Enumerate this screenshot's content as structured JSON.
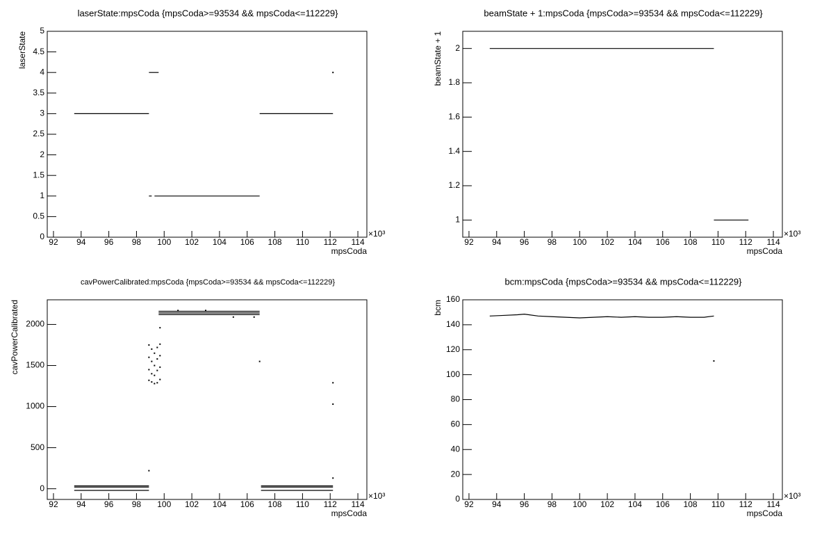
{
  "chart_data": [
    {
      "type": "scatter",
      "title": "laserState:mpsCoda {mpsCoda>=93534 && mpsCoda<=112229}",
      "x_label": "mpsCoda",
      "y_label": "laserState",
      "x_exponent_label": "×10³",
      "color": "#000000",
      "x": [
        93.5,
        98.9,
        null,
        98.9,
        99.6,
        null,
        98.9,
        99.1,
        null,
        99.3,
        106.9,
        null,
        106.9,
        112.2,
        null,
        112.2
      ],
      "values": [
        3,
        3,
        null,
        4,
        4,
        null,
        1,
        1,
        null,
        1,
        1,
        null,
        3,
        3,
        null,
        4
      ],
      "xlim": [
        91.55,
        114.65
      ],
      "xticks": [
        92,
        94,
        96,
        98,
        100,
        102,
        104,
        106,
        108,
        110,
        112,
        114
      ],
      "ylim": [
        0,
        5
      ],
      "yticks": [
        0,
        0.5,
        1,
        1.5,
        2,
        2.5,
        3,
        3.5,
        4,
        4.5,
        5
      ]
    },
    {
      "type": "scatter",
      "title": "beamState + 1:mpsCoda {mpsCoda>=93534 && mpsCoda<=112229}",
      "x_label": "mpsCoda",
      "y_label": "beamState + 1",
      "x_exponent_label": "×10³",
      "color": "#000000",
      "x": [
        93.5,
        109.7,
        null,
        109.7,
        112.2
      ],
      "values": [
        2,
        2,
        null,
        1,
        1
      ],
      "xlim": [
        91.55,
        114.65
      ],
      "xticks": [
        92,
        94,
        96,
        98,
        100,
        102,
        104,
        106,
        108,
        110,
        112,
        114
      ],
      "ylim": [
        0.9,
        2.1
      ],
      "yticks": [
        1,
        1.2,
        1.4,
        1.6,
        1.8,
        2
      ]
    },
    {
      "type": "scatter",
      "title": "cavPowerCalibrated:mpsCoda {mpsCoda>=93534 && mpsCoda<=112229}",
      "x_label": "mpsCoda",
      "y_label": "cavPowerCalibrated",
      "x_exponent_label": "×10³",
      "color": "#000000",
      "x": [
        93.5,
        98.9,
        null,
        93.5,
        98.9,
        null,
        93.5,
        98.9,
        null,
        99.6,
        106.9,
        null,
        99.6,
        106.9,
        null,
        99.6,
        106.9,
        null,
        107,
        112.2,
        null,
        107,
        112.2,
        null,
        107,
        112.2,
        null,
        98.9,
        null,
        98.9,
        null,
        98.9,
        null,
        98.9,
        null,
        99.1,
        null,
        99.1,
        null,
        99.1,
        null,
        99.1,
        null,
        99.3,
        null,
        99.3,
        null,
        99.3,
        null,
        99.3,
        null,
        99.5,
        null,
        99.5,
        null,
        99.5,
        null,
        99.5,
        null,
        99.7,
        null,
        99.7,
        null,
        99.7,
        null,
        99.7,
        null,
        98.9,
        null,
        99.7,
        null,
        106.9,
        null,
        112.2,
        null,
        112.2,
        null,
        112.2,
        null,
        105,
        null,
        106.5,
        null,
        101,
        null,
        103
      ],
      "values": [
        35,
        35,
        null,
        20,
        20,
        null,
        -20,
        -20,
        null,
        2160,
        2160,
        null,
        2140,
        2140,
        null,
        2120,
        2120,
        null,
        35,
        35,
        null,
        20,
        20,
        null,
        -20,
        -20,
        null,
        1750,
        null,
        1600,
        null,
        1450,
        null,
        1320,
        null,
        1700,
        null,
        1550,
        null,
        1400,
        null,
        1300,
        null,
        1650,
        null,
        1500,
        null,
        1380,
        null,
        1280,
        null,
        1720,
        null,
        1580,
        null,
        1440,
        null,
        1290,
        null,
        1760,
        null,
        1620,
        null,
        1480,
        null,
        1330,
        null,
        220,
        null,
        1960,
        null,
        1550,
        null,
        1290,
        null,
        1030,
        null,
        130,
        null,
        2090,
        null,
        2090,
        null,
        2170,
        null,
        2170
      ],
      "xlim": [
        91.55,
        114.65
      ],
      "xticks": [
        92,
        94,
        96,
        98,
        100,
        102,
        104,
        106,
        108,
        110,
        112,
        114
      ],
      "ylim": [
        -130,
        2300
      ],
      "yticks": [
        0,
        500,
        1000,
        1500,
        2000
      ]
    },
    {
      "type": "scatter",
      "title": "bcm:mpsCoda {mpsCoda>=93534 && mpsCoda<=112229}",
      "x_label": "mpsCoda",
      "y_label": "bcm",
      "x_exponent_label": "×10³",
      "color": "#000000",
      "x": [
        93.5,
        94.5,
        95.5,
        96,
        97,
        98,
        99,
        100,
        101,
        102,
        103,
        104,
        105,
        106,
        107,
        108,
        109,
        109.7,
        null,
        109.7
      ],
      "values": [
        147,
        147.5,
        148,
        148.5,
        147,
        146.5,
        146,
        145.5,
        146,
        146.5,
        146,
        146.5,
        146,
        146,
        146.5,
        146,
        146,
        147,
        null,
        111
      ],
      "xlim": [
        91.55,
        114.65
      ],
      "xticks": [
        92,
        94,
        96,
        98,
        100,
        102,
        104,
        106,
        108,
        110,
        112,
        114
      ],
      "ylim": [
        0,
        160
      ],
      "yticks": [
        0,
        20,
        40,
        60,
        80,
        100,
        120,
        140,
        160
      ]
    }
  ]
}
